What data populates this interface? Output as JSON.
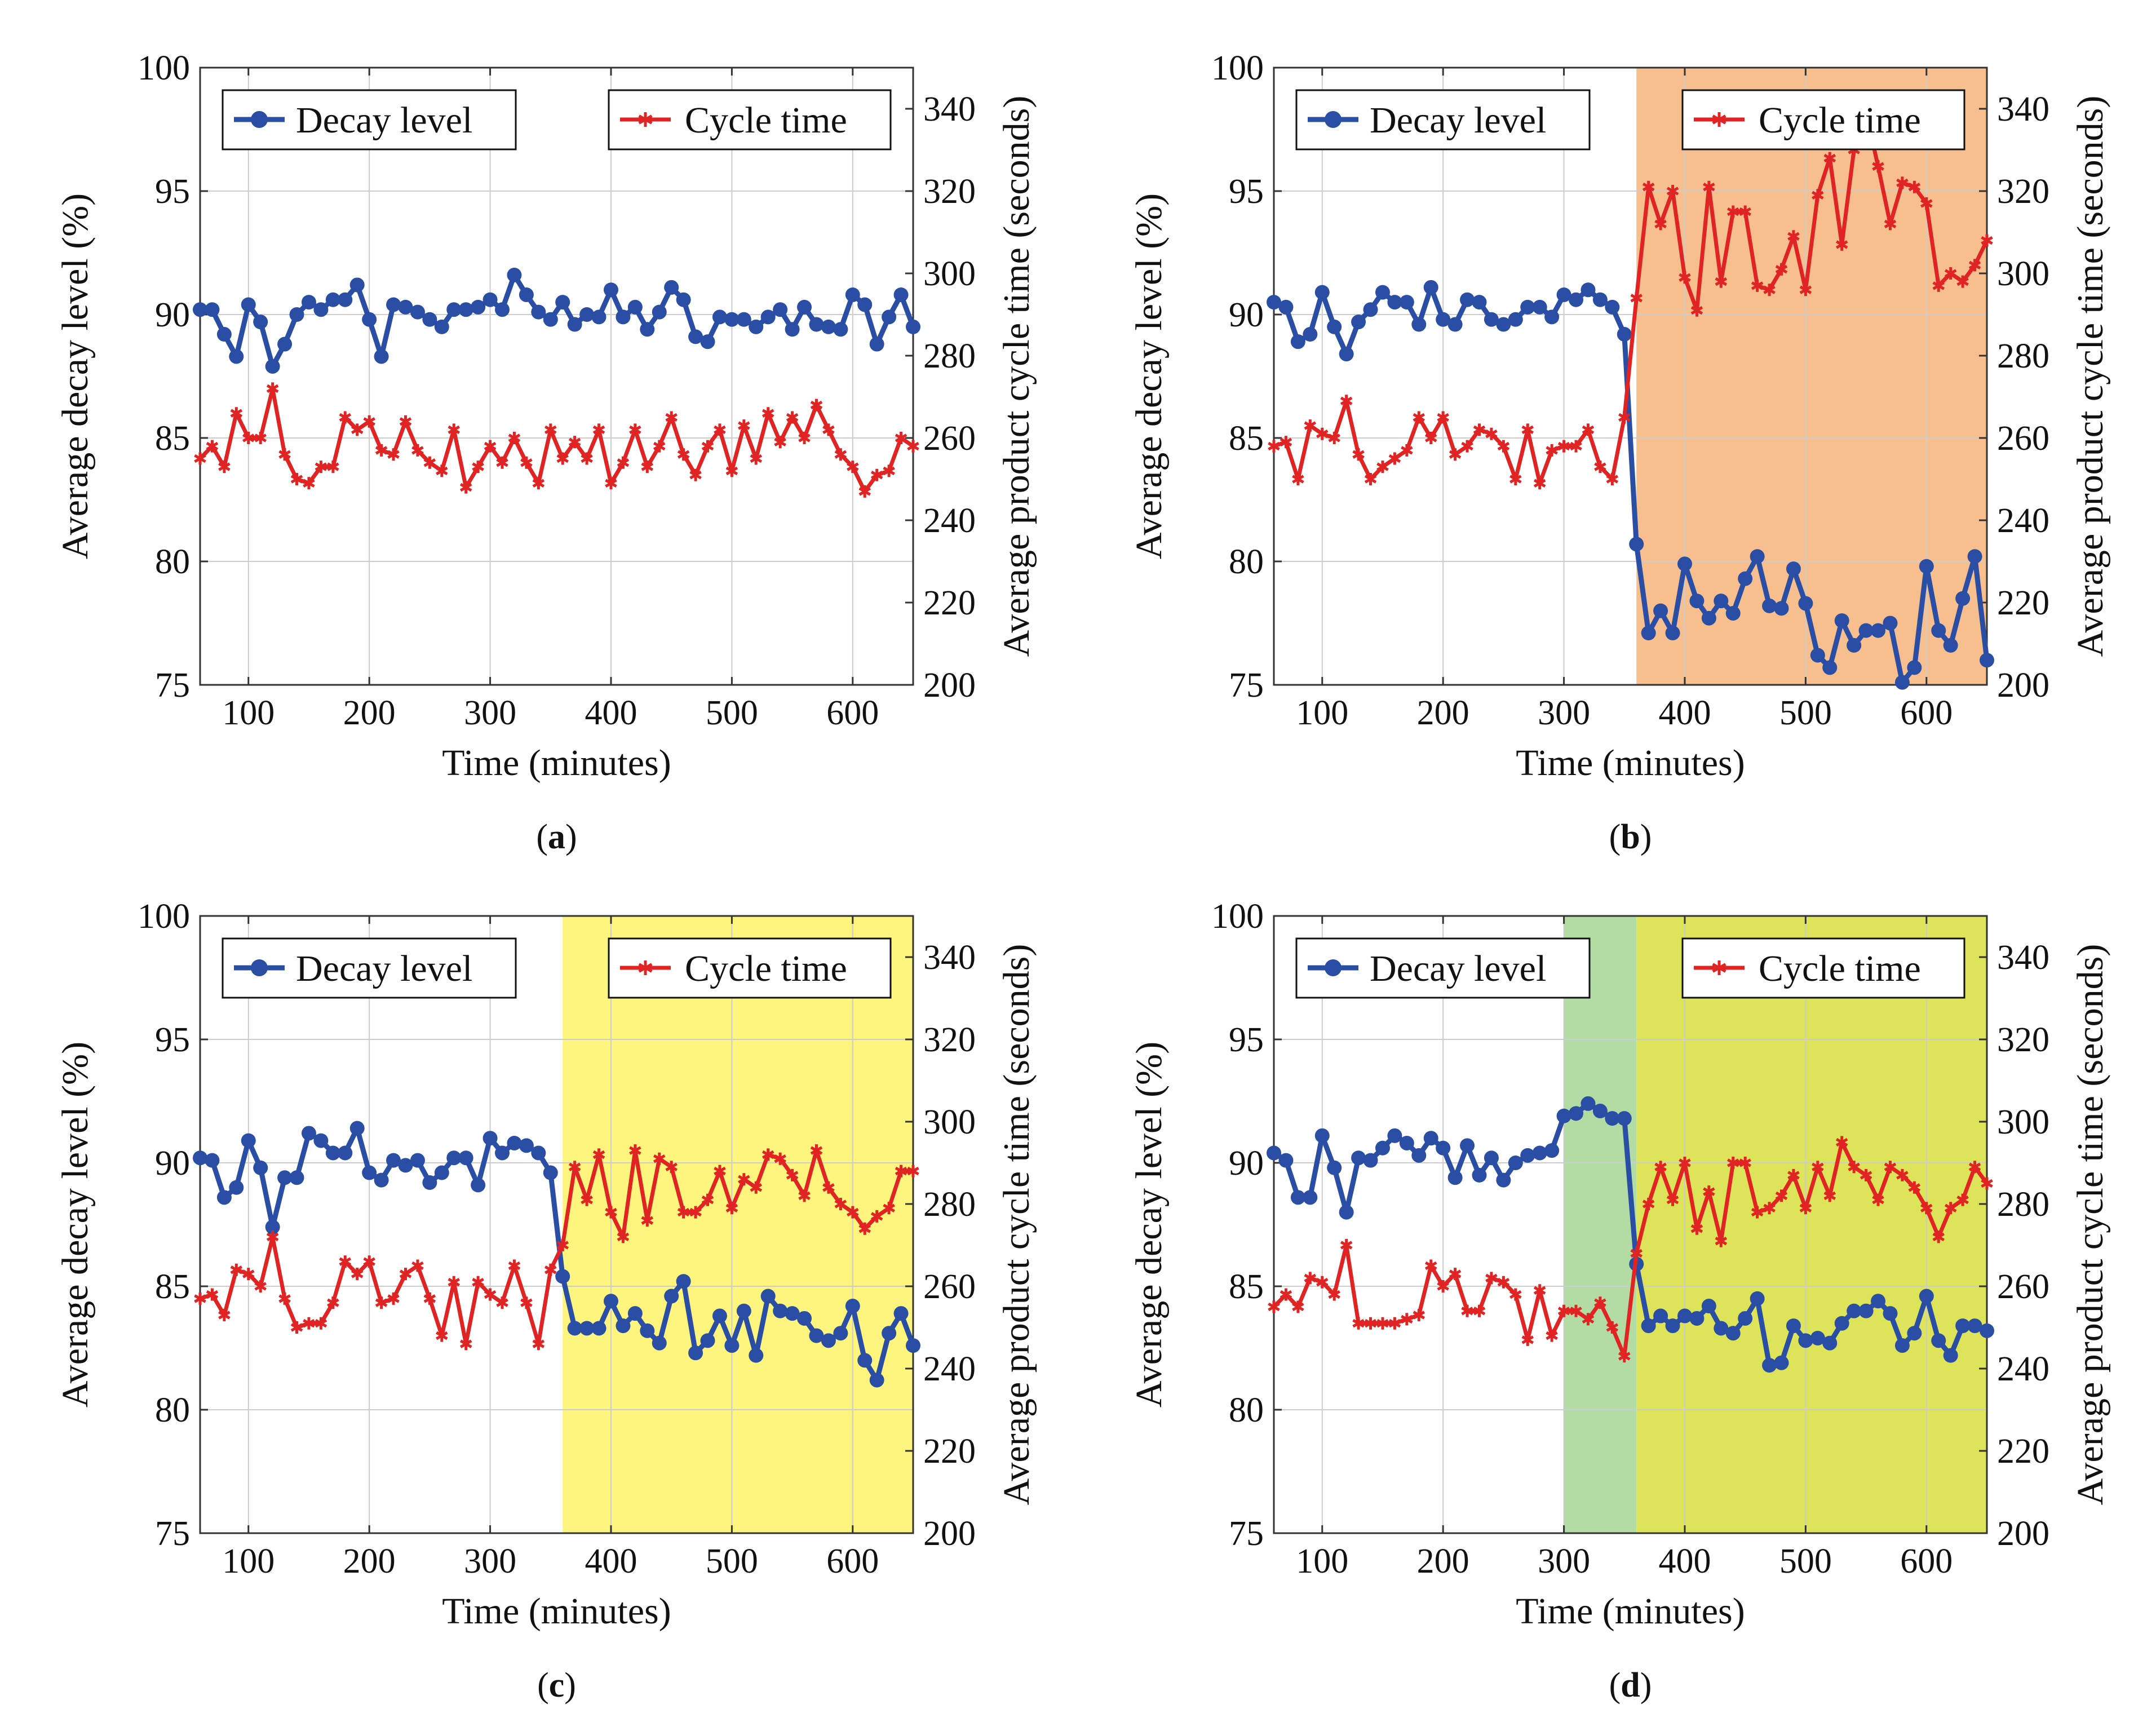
{
  "colors": {
    "decay": "#2a4ea4",
    "cycle": "#e02424",
    "grid": "#cccccc",
    "panel_b_shade": "#f7bf8e",
    "panel_c_shade": "#fdf57d",
    "panel_d_shade_early": "#b3dca4",
    "panel_d_shade_late": "#dde45a"
  },
  "icons": {
    "decay_marker": "filled-circle",
    "cycle_marker": "x-star"
  },
  "axes": {
    "xlabel": "Time (minutes)",
    "ylabel_left": "Average decay level (%)",
    "ylabel_right": "Average product cycle time (seconds)",
    "xlim": [
      60,
      650
    ],
    "ylim_left": [
      75,
      100
    ],
    "ylim_right": [
      200,
      350
    ],
    "xticks": [
      "100",
      "200",
      "300",
      "400",
      "500",
      "600"
    ],
    "yticks_left": [
      "75",
      "80",
      "85",
      "90",
      "95",
      "100"
    ],
    "yticks_right": [
      "200",
      "220",
      "240",
      "260",
      "280",
      "300",
      "320",
      "340"
    ]
  },
  "legend": {
    "decay": "Decay level",
    "cycle": "Cycle time"
  },
  "captions": [
    {
      "open": "(",
      "letter": "a",
      "close": ")"
    },
    {
      "open": "(",
      "letter": "b",
      "close": ")"
    },
    {
      "open": "(",
      "letter": "c",
      "close": ")"
    },
    {
      "open": "(",
      "letter": "d",
      "close": ")"
    }
  ],
  "chart_data": [
    {
      "type": "line",
      "panel": "a",
      "xlabel": "Time (minutes)",
      "ylabel": "Average decay level (%)",
      "ylabel_right": "Average product cycle time (seconds)",
      "xlim": [
        60,
        650
      ],
      "ylim": [
        75,
        100
      ],
      "ylim_right": [
        200,
        350
      ],
      "grid": true,
      "legend": [
        "top-left",
        "top-right"
      ],
      "shaded_regions": [],
      "x": [
        60,
        70,
        80,
        90,
        100,
        110,
        120,
        130,
        140,
        150,
        160,
        170,
        180,
        190,
        200,
        210,
        220,
        230,
        240,
        250,
        260,
        270,
        280,
        290,
        300,
        310,
        320,
        330,
        340,
        350,
        360,
        370,
        380,
        390,
        400,
        410,
        420,
        430,
        440,
        450,
        460,
        470,
        480,
        490,
        500,
        510,
        520,
        530,
        540,
        550,
        560,
        570,
        580,
        590,
        600,
        610,
        620,
        630,
        640,
        650
      ],
      "series": [
        {
          "name": "Decay level",
          "axis": "left",
          "values": [
            90.2,
            90.2,
            89.2,
            88.3,
            90.4,
            89.7,
            87.9,
            88.8,
            90.0,
            90.5,
            90.2,
            90.6,
            90.6,
            91.2,
            89.8,
            88.3,
            90.4,
            90.3,
            90.1,
            89.8,
            89.5,
            90.2,
            90.2,
            90.3,
            90.6,
            90.2,
            91.6,
            90.8,
            90.1,
            89.8,
            90.5,
            89.6,
            90.0,
            89.9,
            91.0,
            89.9,
            90.3,
            89.4,
            90.1,
            91.1,
            90.6,
            89.1,
            88.9,
            89.9,
            89.8,
            89.8,
            89.5,
            89.9,
            90.2,
            89.4,
            90.3,
            89.6,
            89.5,
            89.4,
            90.8,
            90.4,
            88.8,
            89.9,
            90.8,
            89.5
          ]
        },
        {
          "name": "Cycle time",
          "axis": "right",
          "values": [
            255,
            258,
            253,
            266,
            260,
            260,
            272,
            256,
            250,
            249,
            253,
            253,
            265,
            262,
            264,
            257,
            256,
            264,
            257,
            254,
            252,
            262,
            248,
            253,
            258,
            254,
            260,
            254,
            249,
            262,
            255,
            259,
            255,
            262,
            249,
            254,
            262,
            253,
            258,
            265,
            256,
            251,
            258,
            262,
            252,
            263,
            255,
            266,
            259,
            265,
            260,
            268,
            262,
            256,
            253,
            247,
            251,
            252,
            260,
            258
          ]
        }
      ]
    },
    {
      "type": "line",
      "panel": "b",
      "xlabel": "Time (minutes)",
      "ylabel": "Average decay level (%)",
      "ylabel_right": "Average product cycle time (seconds)",
      "xlim": [
        60,
        650
      ],
      "ylim": [
        75,
        100
      ],
      "ylim_right": [
        200,
        350
      ],
      "grid": true,
      "legend": [
        "top-left",
        "top-right"
      ],
      "shaded_regions": [
        {
          "from": 360,
          "to": 650,
          "color": "#f7bf8e"
        }
      ],
      "x": [
        60,
        70,
        80,
        90,
        100,
        110,
        120,
        130,
        140,
        150,
        160,
        170,
        180,
        190,
        200,
        210,
        220,
        230,
        240,
        250,
        260,
        270,
        280,
        290,
        300,
        310,
        320,
        330,
        340,
        350,
        360,
        370,
        380,
        390,
        400,
        410,
        420,
        430,
        440,
        450,
        460,
        470,
        480,
        490,
        500,
        510,
        520,
        530,
        540,
        550,
        560,
        570,
        580,
        590,
        600,
        610,
        620,
        630,
        640,
        650
      ],
      "series": [
        {
          "name": "Decay level",
          "axis": "left",
          "values": [
            90.5,
            90.3,
            88.9,
            89.2,
            90.9,
            89.5,
            88.4,
            89.7,
            90.2,
            90.9,
            90.5,
            90.5,
            89.6,
            91.1,
            89.8,
            89.6,
            90.6,
            90.5,
            89.8,
            89.6,
            89.8,
            90.3,
            90.3,
            89.9,
            90.8,
            90.6,
            91.0,
            90.6,
            90.3,
            89.2,
            80.7,
            77.1,
            78.0,
            77.1,
            79.9,
            78.4,
            77.7,
            78.4,
            77.9,
            79.3,
            80.2,
            78.2,
            78.1,
            79.7,
            78.3,
            76.2,
            75.7,
            77.6,
            76.6,
            77.2,
            77.2,
            77.5,
            75.1,
            75.7,
            79.8,
            77.2,
            76.6,
            78.5,
            80.2,
            76.0
          ]
        },
        {
          "name": "Cycle time",
          "axis": "right",
          "values": [
            258,
            259,
            250,
            263,
            261,
            260,
            269,
            256,
            250,
            253,
            255,
            257,
            265,
            260,
            265,
            256,
            258,
            262,
            261,
            258,
            250,
            262,
            249,
            257,
            258,
            258,
            262,
            253,
            250,
            265,
            294,
            321,
            312,
            320,
            299,
            291,
            321,
            298,
            315,
            315,
            297,
            296,
            301,
            309,
            296,
            319,
            328,
            307,
            330,
            339,
            326,
            312,
            322,
            321,
            317,
            297,
            300,
            298,
            302,
            308
          ]
        }
      ]
    },
    {
      "type": "line",
      "panel": "c",
      "xlabel": "Time (minutes)",
      "ylabel": "Average decay level (%)",
      "ylabel_right": "Average product cycle time (seconds)",
      "xlim": [
        60,
        650
      ],
      "ylim": [
        75,
        100
      ],
      "ylim_right": [
        200,
        350
      ],
      "grid": true,
      "legend": [
        "top-left",
        "top-right"
      ],
      "shaded_regions": [
        {
          "from": 360,
          "to": 650,
          "color": "#fdf57d"
        }
      ],
      "x": [
        60,
        70,
        80,
        90,
        100,
        110,
        120,
        130,
        140,
        150,
        160,
        170,
        180,
        190,
        200,
        210,
        220,
        230,
        240,
        250,
        260,
        270,
        280,
        290,
        300,
        310,
        320,
        330,
        340,
        350,
        360,
        370,
        380,
        390,
        400,
        410,
        420,
        430,
        440,
        450,
        460,
        470,
        480,
        490,
        500,
        510,
        520,
        530,
        540,
        550,
        560,
        570,
        580,
        590,
        600,
        610,
        620,
        630,
        640,
        650
      ],
      "series": [
        {
          "name": "Decay level",
          "axis": "left",
          "values": [
            90.2,
            90.1,
            88.6,
            89.0,
            90.9,
            89.8,
            87.4,
            89.4,
            89.4,
            91.2,
            90.9,
            90.4,
            90.4,
            91.4,
            89.6,
            89.3,
            90.1,
            89.9,
            90.1,
            89.2,
            89.6,
            90.2,
            90.2,
            89.1,
            91.0,
            90.4,
            90.8,
            90.7,
            90.4,
            89.6,
            85.4,
            83.3,
            83.3,
            83.3,
            84.4,
            83.4,
            83.9,
            83.2,
            82.7,
            84.6,
            85.2,
            82.3,
            82.8,
            83.8,
            82.6,
            84.0,
            82.2,
            84.6,
            84.0,
            83.9,
            83.7,
            83.0,
            82.8,
            83.1,
            84.2,
            82.0,
            81.2,
            83.1,
            83.9,
            82.6
          ]
        },
        {
          "name": "Cycle time",
          "axis": "right",
          "values": [
            257,
            258,
            253,
            264,
            263,
            260,
            272,
            257,
            250,
            251,
            251,
            256,
            266,
            263,
            266,
            256,
            257,
            263,
            265,
            257,
            248,
            261,
            246,
            261,
            258,
            256,
            265,
            256,
            246,
            264,
            270,
            289,
            281,
            292,
            278,
            272,
            293,
            276,
            291,
            289,
            278,
            278,
            281,
            288,
            279,
            286,
            284,
            292,
            291,
            287,
            282,
            293,
            284,
            280,
            278,
            274,
            277,
            279,
            288,
            288
          ]
        }
      ]
    },
    {
      "type": "line",
      "panel": "d",
      "xlabel": "Time (minutes)",
      "ylabel": "Average decay level (%)",
      "ylabel_right": "Average product cycle time (seconds)",
      "xlim": [
        60,
        650
      ],
      "ylim": [
        75,
        100
      ],
      "ylim_right": [
        200,
        350
      ],
      "grid": true,
      "legend": [
        "top-left",
        "top-right"
      ],
      "shaded_regions": [
        {
          "from": 300,
          "to": 360,
          "color": "#b3dca4"
        },
        {
          "from": 360,
          "to": 650,
          "color": "#dde45a"
        }
      ],
      "x": [
        60,
        70,
        80,
        90,
        100,
        110,
        120,
        130,
        140,
        150,
        160,
        170,
        180,
        190,
        200,
        210,
        220,
        230,
        240,
        250,
        260,
        270,
        280,
        290,
        300,
        310,
        320,
        330,
        340,
        350,
        360,
        370,
        380,
        390,
        400,
        410,
        420,
        430,
        440,
        450,
        460,
        470,
        480,
        490,
        500,
        510,
        520,
        530,
        540,
        550,
        560,
        570,
        580,
        590,
        600,
        610,
        620,
        630,
        640,
        650
      ],
      "series": [
        {
          "name": "Decay level",
          "axis": "left",
          "values": [
            90.4,
            90.1,
            88.6,
            88.6,
            91.1,
            89.8,
            88.0,
            90.2,
            90.1,
            90.6,
            91.1,
            90.8,
            90.3,
            91.0,
            90.6,
            89.4,
            90.7,
            89.5,
            90.2,
            89.3,
            90.0,
            90.3,
            90.4,
            90.5,
            91.9,
            92.0,
            92.4,
            92.1,
            91.8,
            91.8,
            85.9,
            83.4,
            83.8,
            83.4,
            83.8,
            83.7,
            84.2,
            83.3,
            83.1,
            83.7,
            84.5,
            81.8,
            81.9,
            83.4,
            82.8,
            82.9,
            82.7,
            83.5,
            84.0,
            84.0,
            84.4,
            83.9,
            82.6,
            83.1,
            84.6,
            82.8,
            82.2,
            83.4,
            83.4,
            83.2
          ]
        },
        {
          "name": "Cycle time",
          "axis": "right",
          "values": [
            255,
            258,
            255,
            262,
            261,
            258,
            270,
            251,
            251,
            251,
            251,
            252,
            253,
            265,
            260,
            263,
            254,
            254,
            262,
            261,
            258,
            247,
            259,
            248,
            254,
            254,
            252,
            256,
            250,
            243,
            268,
            280,
            289,
            281,
            290,
            274,
            283,
            271,
            290,
            290,
            278,
            279,
            282,
            287,
            279,
            289,
            282,
            295,
            289,
            287,
            281,
            289,
            287,
            284,
            279,
            272,
            279,
            281,
            289,
            285
          ]
        }
      ]
    }
  ]
}
